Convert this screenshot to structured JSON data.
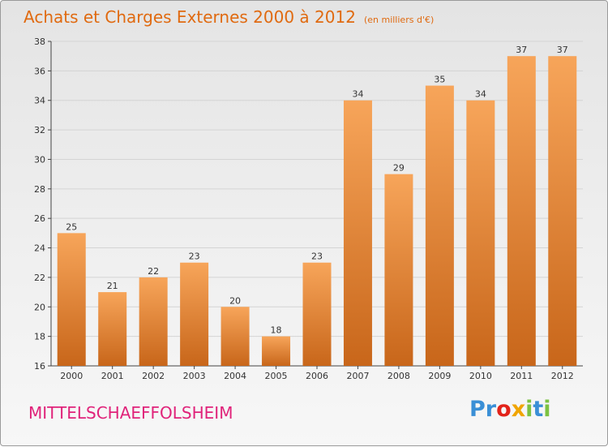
{
  "title": "Achats et Charges Externes 2000 à 2012",
  "unit": "(en milliers d'€)",
  "commune": "MITTELSCHAEFFOLSHEIM",
  "logo": {
    "letters": [
      "P",
      "r",
      "o",
      "x",
      "i",
      "t",
      "i"
    ],
    "colors": [
      "#3a8fd6",
      "#3a8fd6",
      "#e2231a",
      "#f0a500",
      "#7cc242",
      "#3a8fd6",
      "#7cc242"
    ]
  },
  "colors": {
    "bar_top": "#f7a55a",
    "bar_bottom": "#c8661a",
    "title": "#e06a10",
    "commune": "#e0237a",
    "grid": "#d4d4d4"
  },
  "chart_data": {
    "type": "bar",
    "categories": [
      "2000",
      "2001",
      "2002",
      "2003",
      "2004",
      "2005",
      "2006",
      "2007",
      "2008",
      "2009",
      "2010",
      "2011",
      "2012"
    ],
    "values": [
      25,
      21,
      22,
      23,
      20,
      18,
      23,
      34,
      29,
      35,
      34,
      37,
      37
    ],
    "title": "Achats et Charges Externes 2000 à 2012",
    "xlabel": "",
    "ylabel": "",
    "ylim": [
      16,
      38
    ],
    "yticks": [
      16,
      18,
      20,
      22,
      24,
      26,
      28,
      30,
      32,
      34,
      36,
      38
    ],
    "grid": true,
    "data_labels": true
  }
}
